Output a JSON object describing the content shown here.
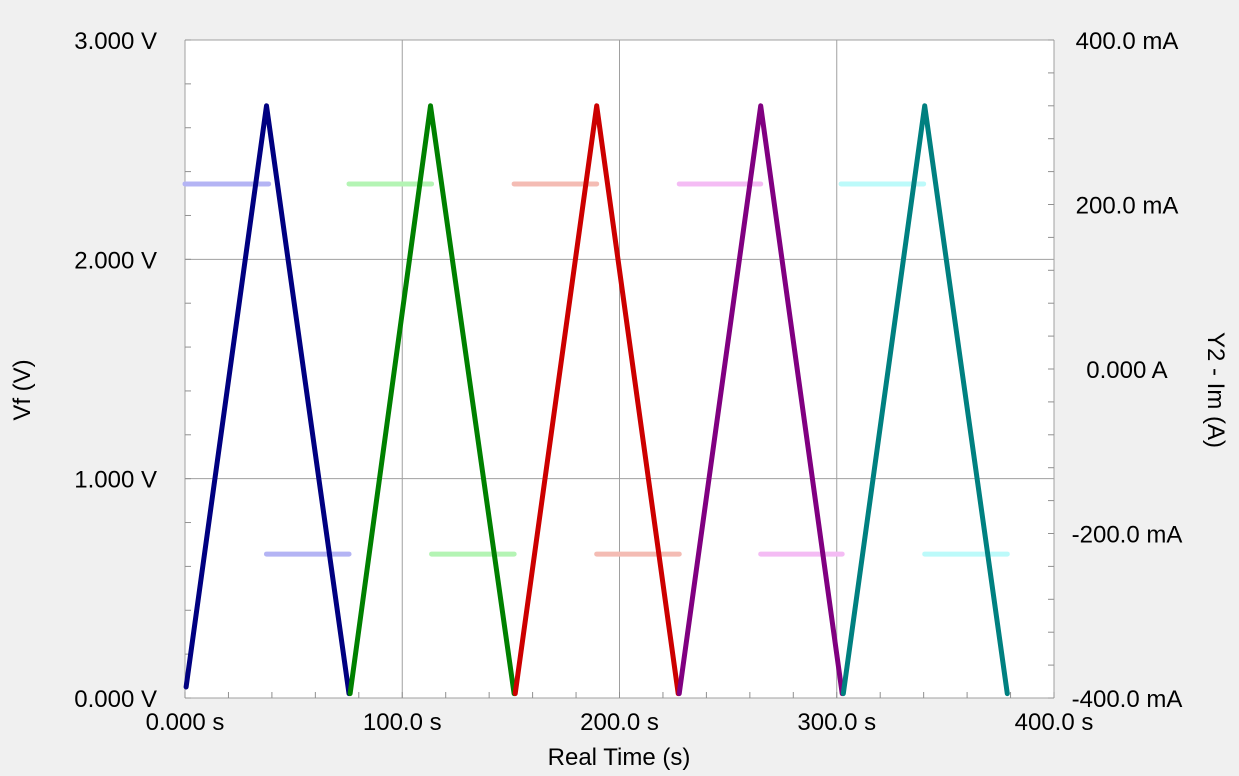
{
  "chart_data": {
    "type": "line",
    "title": "",
    "xlabel": "Real Time (s)",
    "ylabel": "Vf (V)",
    "y2label": "Y2 - Im (A)",
    "xlim": [
      0,
      400
    ],
    "ylim": [
      0,
      3
    ],
    "y2lim": [
      -0.4,
      0.4
    ],
    "grid": true,
    "x_ticks": [
      "0.000 s",
      "100.0 s",
      "200.0 s",
      "300.0 s",
      "400.0 s"
    ],
    "y_ticks": [
      "0.000 V",
      "1.000 V",
      "2.000 V",
      "3.000 V"
    ],
    "y2_ticks": [
      "-400.0 mA",
      "-200.0 mA",
      "0.000 A",
      "200.0 mA",
      "400.0 mA"
    ],
    "voltage_series": [
      {
        "color": "#000080",
        "points": [
          [
            0.5,
            0.05
          ],
          [
            37.5,
            2.7
          ],
          [
            75.5,
            0.02
          ]
        ]
      },
      {
        "color": "#008000",
        "points": [
          [
            76,
            0.02
          ],
          [
            113,
            2.7
          ],
          [
            151.5,
            0.02
          ]
        ]
      },
      {
        "color": "#cc0000",
        "points": [
          [
            152,
            0.02
          ],
          [
            189.5,
            2.7
          ],
          [
            227,
            0.02
          ]
        ]
      },
      {
        "color": "#800080",
        "points": [
          [
            227.5,
            0.02
          ],
          [
            265,
            2.7
          ],
          [
            302.5,
            0.02
          ]
        ]
      },
      {
        "color": "#008080",
        "points": [
          [
            303,
            0.02
          ],
          [
            340.5,
            2.7
          ],
          [
            378.5,
            0.02
          ]
        ]
      }
    ],
    "current_series": [
      {
        "color": "#b4b4f4",
        "segments": [
          [
            0,
            38.5,
            0.225
          ],
          [
            37.5,
            75.5,
            -0.225
          ]
        ]
      },
      {
        "color": "#b4f4b4",
        "segments": [
          [
            75.5,
            113.5,
            0.225
          ],
          [
            113.5,
            151.5,
            -0.225
          ]
        ]
      },
      {
        "color": "#f4bcb4",
        "segments": [
          [
            151.5,
            189.5,
            0.225
          ],
          [
            189.5,
            227.5,
            -0.225
          ]
        ]
      },
      {
        "color": "#f4bcf4",
        "segments": [
          [
            227.5,
            265,
            0.225
          ],
          [
            265,
            302.5,
            -0.225
          ]
        ]
      },
      {
        "color": "#bcfafa",
        "segments": [
          [
            302,
            340,
            0.225
          ],
          [
            340.5,
            378.5,
            -0.225
          ]
        ]
      }
    ]
  }
}
